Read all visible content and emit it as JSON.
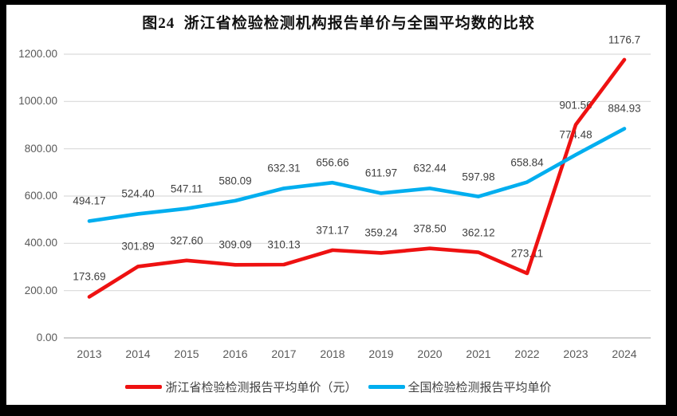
{
  "title": "图24  浙江省检验检测机构报告单价与全国平均数的比较",
  "chart_data": {
    "type": "line",
    "title": "图24 浙江省检验检测机构报告单价与全国平均数的比较",
    "categories": [
      "2013",
      "2014",
      "2015",
      "2016",
      "2017",
      "2018",
      "2019",
      "2020",
      "2021",
      "2022",
      "2023",
      "2024"
    ],
    "series": [
      {
        "name": "浙江省检验检测报告平均单价（元）",
        "color": "#ee1111",
        "values": [
          173.69,
          301.89,
          327.6,
          309.09,
          310.13,
          371.17,
          359.24,
          378.5,
          362.12,
          273.11,
          901.56,
          1176.7
        ],
        "labels": [
          "173.69",
          "301.89",
          "327.60",
          "309.09",
          "310.13",
          "371.17",
          "359.24",
          "378.50",
          "362.12",
          "273.11",
          "901.56",
          "1176.7"
        ]
      },
      {
        "name": "全国检验检测报告平均单价",
        "color": "#00aeef",
        "values": [
          494.17,
          524.4,
          547.11,
          580.09,
          632.31,
          656.66,
          611.97,
          632.44,
          597.98,
          658.84,
          774.48,
          884.93
        ],
        "labels": [
          "494.17",
          "524.40",
          "547.11",
          "580.09",
          "632.31",
          "656.66",
          "611.97",
          "632.44",
          "597.98",
          "658.84",
          "774.48",
          "884.93"
        ]
      }
    ],
    "ylim": [
      0,
      1200
    ],
    "ytick_step": 200,
    "ytick_labels": [
      "0.00",
      "200.00",
      "400.00",
      "600.00",
      "800.00",
      "1000.00",
      "1200.00"
    ],
    "grid": true,
    "data_labels": true,
    "legend_position": "bottom"
  },
  "colors": {
    "grid": "#d9d9d9",
    "axis": "#bfbfbf",
    "tick_text": "#595959",
    "label_text": "#3f3f3f",
    "frame": "#000000"
  }
}
